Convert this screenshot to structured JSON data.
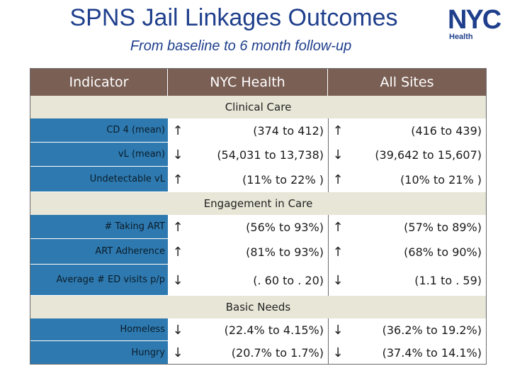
{
  "header": {
    "title": "SPNS Jail Linkages Outcomes",
    "subtitle": "From baseline to 6 month follow-up"
  },
  "logo": {
    "wordmark": "NYC",
    "caption": "Health"
  },
  "table": {
    "columns": [
      "Indicator",
      "NYC Health",
      "All Sites"
    ],
    "sections": [
      {
        "title": "Clinical Care",
        "rows": [
          {
            "indicator": "CD 4 (mean)",
            "nyc_arrow": "↑",
            "nyc_value": "(374 to 412)",
            "all_arrow": "↑",
            "all_value": "(416 to 439)"
          },
          {
            "indicator": "vL (mean)",
            "nyc_arrow": "↓",
            "nyc_value": "(54,031 to 13,738)",
            "all_arrow": "↓",
            "all_value": "(39,642 to 15,607)"
          },
          {
            "indicator": "Undetectable vL",
            "nyc_arrow": "↑",
            "nyc_value": "(11% to 22% )",
            "all_arrow": "↑",
            "all_value": "(10% to 21% )"
          }
        ]
      },
      {
        "title": "Engagement in Care",
        "rows": [
          {
            "indicator": "# Taking ART",
            "nyc_arrow": "↑",
            "nyc_value": "(56% to 93%)",
            "all_arrow": "↑",
            "all_value": "(57% to 89%)"
          },
          {
            "indicator": "ART Adherence",
            "nyc_arrow": "↑",
            "nyc_value": "(81% to 93%)",
            "all_arrow": "↑",
            "all_value": "(68% to 90%)"
          },
          {
            "indicator": "Average # ED visits p/p",
            "nyc_arrow": "↓",
            "nyc_value": "(. 60 to . 20)",
            "all_arrow": "↓",
            "all_value": "(1.1 to . 59)"
          }
        ]
      },
      {
        "title": "Basic Needs",
        "rows": [
          {
            "indicator": "Homeless",
            "nyc_arrow": "↓",
            "nyc_value": "(22.4% to 4.15%)",
            "all_arrow": "↓",
            "all_value": "(36.2% to 19.2%)"
          },
          {
            "indicator": "Hungry",
            "nyc_arrow": "↓",
            "nyc_value": "(20.7% to 1.7%)",
            "all_arrow": "↓",
            "all_value": "(37.4% to 14.1%)"
          }
        ]
      }
    ]
  },
  "colors": {
    "title": "#1f3f8c",
    "header_bg": "#7a5f55",
    "section_bg": "#e8e6d7",
    "indicator_bg": "#2e7ab0"
  }
}
